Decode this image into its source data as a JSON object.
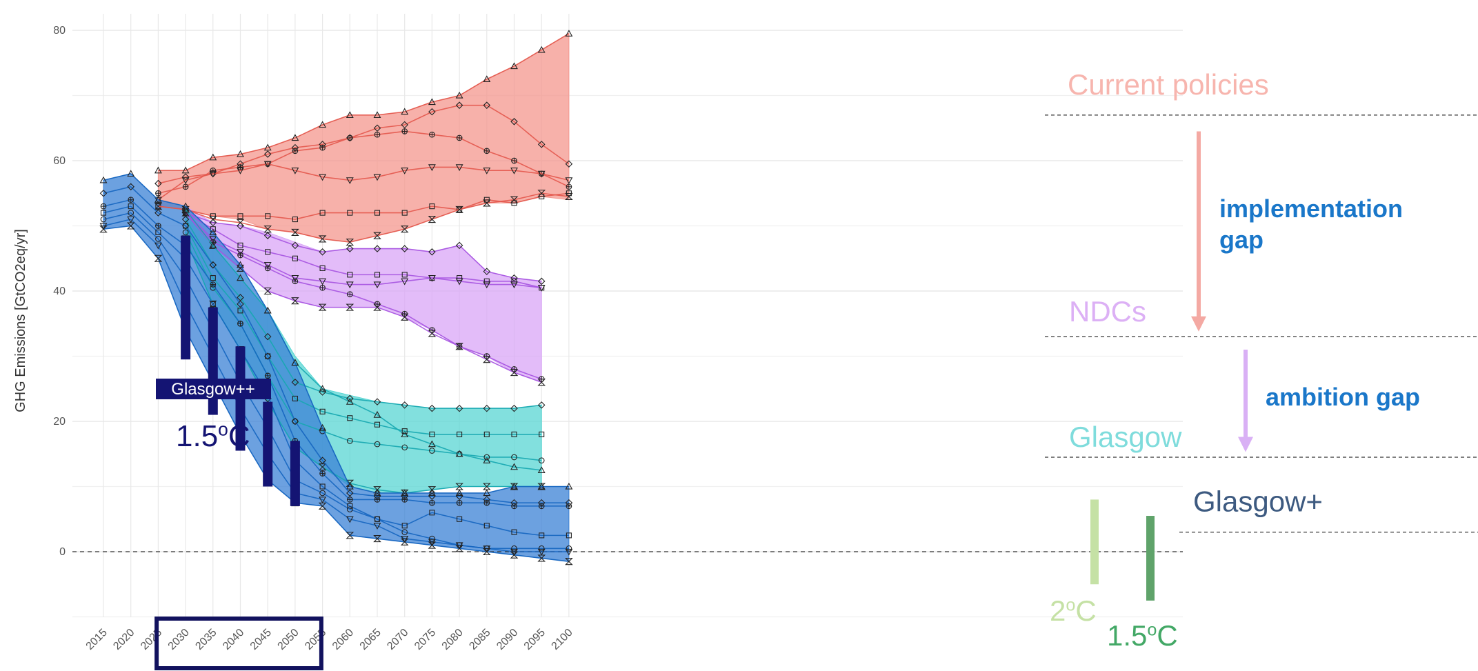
{
  "chart_data": {
    "type": "area",
    "ylabel": "GHG Emissions [GtCO2eq/yr]",
    "ylim": [
      -10,
      82
    ],
    "yticks": [
      0,
      20,
      40,
      60,
      80
    ],
    "grid": true,
    "x": [
      2015,
      2020,
      2025,
      2030,
      2035,
      2040,
      2045,
      2050,
      2055,
      2060,
      2065,
      2070,
      2075,
      2080,
      2085,
      2090,
      2095,
      2100
    ],
    "x_tick_labels": [
      "2015",
      "2020",
      "2025",
      "2030",
      "2035",
      "2040",
      "2045",
      "2050",
      "2055",
      "2060",
      "2065",
      "2070",
      "2075",
      "2080",
      "2085",
      "2090",
      "2095",
      "2100"
    ],
    "bands": [
      {
        "name": "Current policies",
        "color": "#f4978e",
        "start_index": 2,
        "upper": [
          58.5,
          58.5,
          60.5,
          61,
          62,
          63.5,
          65.5,
          67,
          67,
          67.5,
          69,
          70,
          72.5,
          74.5,
          77,
          79.5
        ],
        "lower": [
          53,
          52.5,
          51.5,
          51,
          49.5,
          49,
          48,
          47.5,
          48.5,
          49.5,
          51,
          52.5,
          53.5,
          53.5,
          54.5,
          54
        ],
        "lines": [
          {
            "marker": "triangle",
            "values": [
              58.5,
              58.5,
              60.5,
              61,
              62,
              63.5,
              65.5,
              67,
              67,
              67.5,
              69,
              70,
              72.5,
              74.5,
              77,
              79.5
            ]
          },
          {
            "marker": "diamond",
            "values": [
              56.5,
              57.5,
              58,
              59.5,
              61,
              62,
              62.5,
              63.5,
              65,
              65.5,
              67.5,
              68.5,
              68.5,
              66,
              62.5,
              59.5
            ]
          },
          {
            "marker": "plus",
            "values": [
              55,
              56,
              58.5,
              59,
              59.5,
              61.5,
              62,
              63.5,
              64,
              64.5,
              64,
              63.5,
              61.5,
              60,
              58,
              56
            ]
          },
          {
            "marker": "triangle-down",
            "values": [
              54,
              57,
              58,
              58.5,
              59.5,
              58.5,
              57.5,
              57,
              57.5,
              58.5,
              59,
              59,
              58.5,
              58.5,
              58,
              57
            ]
          },
          {
            "marker": "square",
            "values": [
              53,
              52.5,
              51.5,
              51.5,
              51.5,
              51,
              52,
              52,
              52,
              52,
              53,
              52.5,
              54,
              53.5,
              54.5,
              55
            ]
          },
          {
            "marker": "hourglass",
            "values": [
              53,
              52.5,
              51,
              50.5,
              49.5,
              49,
              48,
              47.5,
              48.5,
              49.5,
              51,
              52.5,
              53.5,
              54,
              55,
              54.5
            ]
          }
        ]
      },
      {
        "name": "NDCs",
        "color": "#d9a6f7",
        "start_index": 3,
        "upper": [
          53,
          50.5,
          50,
          49,
          47.5,
          46,
          46.5,
          46.5,
          46.5,
          46,
          47,
          43,
          42,
          41.5
        ],
        "lower": [
          52,
          47,
          43.5,
          40,
          38.5,
          37.5,
          37.5,
          37.5,
          36,
          34,
          31.5,
          30,
          27.5,
          26
        ],
        "lines": [
          {
            "marker": "diamond",
            "values": [
              52,
              50.5,
              50,
              48.5,
              47,
              46,
              46.5,
              46.5,
              46.5,
              46,
              47,
              43,
              42,
              41.5
            ]
          },
          {
            "marker": "square",
            "values": [
              52,
              49.5,
              47,
              46,
              45,
              43.5,
              42.5,
              42.5,
              42.5,
              42,
              42,
              41.5,
              41.5,
              40.5
            ]
          },
          {
            "marker": "triangle-down",
            "values": [
              52,
              48,
              46,
              44,
              42,
              41.5,
              41,
              41,
              41.5,
              42,
              41.5,
              41,
              41,
              40.5
            ]
          },
          {
            "marker": "plus",
            "values": [
              52,
              47.5,
              45.5,
              43.5,
              41.5,
              40.5,
              39.5,
              38,
              36.5,
              34,
              31.5,
              30,
              28,
              26.5
            ]
          },
          {
            "marker": "hourglass",
            "values": [
              52,
              47,
              43.5,
              40,
              38.5,
              37.5,
              37.5,
              37.5,
              36,
              33.5,
              31.5,
              29.5,
              27.5,
              26
            ]
          }
        ]
      },
      {
        "name": "Glasgow",
        "color": "#58d6d3",
        "start_index": 3,
        "upper": [
          52.5,
          47,
          42,
          37,
          30,
          25,
          24,
          23,
          22.5,
          22,
          22,
          22,
          22,
          22.5
        ],
        "lower": [
          48,
          38,
          31,
          23,
          16,
          13,
          10,
          9,
          9,
          9.5,
          10,
          10,
          10,
          10
        ],
        "lines": [
          {
            "marker": "triangle",
            "values": [
              52.5,
              47,
              42,
              37,
              29,
              25,
              23,
              21,
              18,
              16.5,
              15,
              14,
              13,
              12.5
            ]
          },
          {
            "marker": "diamond",
            "values": [
              51,
              44,
              39,
              33,
              26,
              24.5,
              23.5,
              23,
              22.5,
              22,
              22,
              22,
              22,
              22.5
            ]
          },
          {
            "marker": "square",
            "values": [
              50,
              42,
              37,
              30,
              23.5,
              21.5,
              20.5,
              19.5,
              18.5,
              18,
              18,
              18,
              18,
              18
            ]
          },
          {
            "marker": "circle",
            "values": [
              49,
              40.5,
              35,
              27,
              20,
              18.5,
              17,
              16.5,
              16,
              15.5,
              15,
              14.5,
              14.5,
              14
            ]
          },
          {
            "marker": "hourglass",
            "values": [
              48,
              38,
              31,
              23,
              16,
              13,
              10.5,
              9.5,
              9,
              9.5,
              10,
              10,
              10,
              10
            ]
          }
        ]
      },
      {
        "name": "Glasgow+",
        "color": "#3b82d6",
        "start_index": 0,
        "upper": [
          57,
          58,
          54,
          53,
          49,
          44,
          37,
          29,
          19,
          10,
          9,
          9,
          9,
          9,
          9,
          10,
          10,
          10
        ],
        "lower": [
          49.5,
          50,
          45,
          34,
          26,
          18,
          11,
          7.5,
          7,
          2.5,
          2,
          1.5,
          1,
          0.5,
          0,
          -0.5,
          -1,
          -1.5
        ],
        "lines": [
          {
            "marker": "triangle",
            "values": [
              57,
              58,
              54,
              53,
              49,
              44,
              37,
              29,
              19,
              10,
              9,
              9,
              9,
              9,
              9,
              10,
              10,
              10
            ]
          },
          {
            "marker": "diamond",
            "values": [
              55,
              56,
              52,
              50,
              44,
              38,
              30,
              20,
              14,
              9,
              8.5,
              8.5,
              8.5,
              8.5,
              8,
              7.5,
              7.5,
              7.5
            ]
          },
          {
            "marker": "plus",
            "values": [
              53,
              54,
              50,
              47,
              41,
              35,
              27,
              17,
              12,
              8,
              8,
              8,
              7.5,
              7.5,
              7.5,
              7,
              7,
              7
            ]
          },
          {
            "marker": "square",
            "values": [
              52,
              53,
              49,
              45,
              38,
              31,
              24,
              14,
              10,
              7,
              5,
              4,
              6,
              5,
              4,
              3,
              2.5,
              2.5
            ]
          },
          {
            "marker": "circle",
            "values": [
              51,
              52,
              48,
              42,
              34,
              26,
              19,
              11,
              9,
              6.5,
              5,
              3,
              2,
              1,
              0.5,
              0.5,
              0.5,
              0.5
            ]
          },
          {
            "marker": "triangle-down",
            "values": [
              50,
              51,
              47,
              38,
              30,
              22,
              15,
              9,
              8,
              5,
              4,
              2,
              1.5,
              1,
              0.5,
              0,
              0,
              0
            ]
          },
          {
            "marker": "hourglass",
            "values": [
              49.5,
              50,
              45,
              34,
              26,
              18,
              11,
              7.5,
              7,
              2.5,
              2,
              1.5,
              1,
              0.5,
              0,
              -0.5,
              -1,
              -1.5
            ]
          }
        ]
      }
    ],
    "zero_line": 0,
    "glasgow_pp_bars": [
      {
        "x": 2030,
        "top": 48.5,
        "bottom": 29.5
      },
      {
        "x": 2035,
        "top": 37.5,
        "bottom": 21
      },
      {
        "x": 2040,
        "top": 31.5,
        "bottom": 15.5
      },
      {
        "x": 2045,
        "top": 23,
        "bottom": 10
      },
      {
        "x": 2050,
        "top": 17,
        "bottom": 7
      }
    ],
    "temp_bars": [
      {
        "label": "2oC",
        "color": "#c5e1a5",
        "top": 8,
        "bottom": -5,
        "text_color": "#c5e1a5"
      },
      {
        "label": "1.5oC",
        "color": "#5fa36a",
        "top": 5.5,
        "bottom": -7.5,
        "text_color": "#43a866"
      }
    ],
    "band_labels": [
      {
        "text": "Current policies",
        "color": "#f7b5ae",
        "level": 67
      },
      {
        "text": "NDCs",
        "color": "#dcb0f5",
        "level": 33
      },
      {
        "text": "Glasgow",
        "color": "#7fdcdc",
        "level": 14.5
      },
      {
        "text": "Glasgow+",
        "color": "#3d5a80",
        "level": 3
      }
    ],
    "gap_arrows": [
      {
        "label_line1": "implementation",
        "label_line2": "gap",
        "color": "#f4a9a3",
        "from": 64.5,
        "to": 34,
        "text_color": "#1a77c9"
      },
      {
        "label_line1": "ambition gap",
        "label_line2": "",
        "color": "#d9b0f5",
        "from": 31,
        "to": 15.5,
        "text_color": "#1a77c9"
      }
    ],
    "glasgow_pp_label": "Glasgow++",
    "glasgow_pp_temp": "1.5oC",
    "highlight_range": [
      2030,
      2050
    ]
  }
}
